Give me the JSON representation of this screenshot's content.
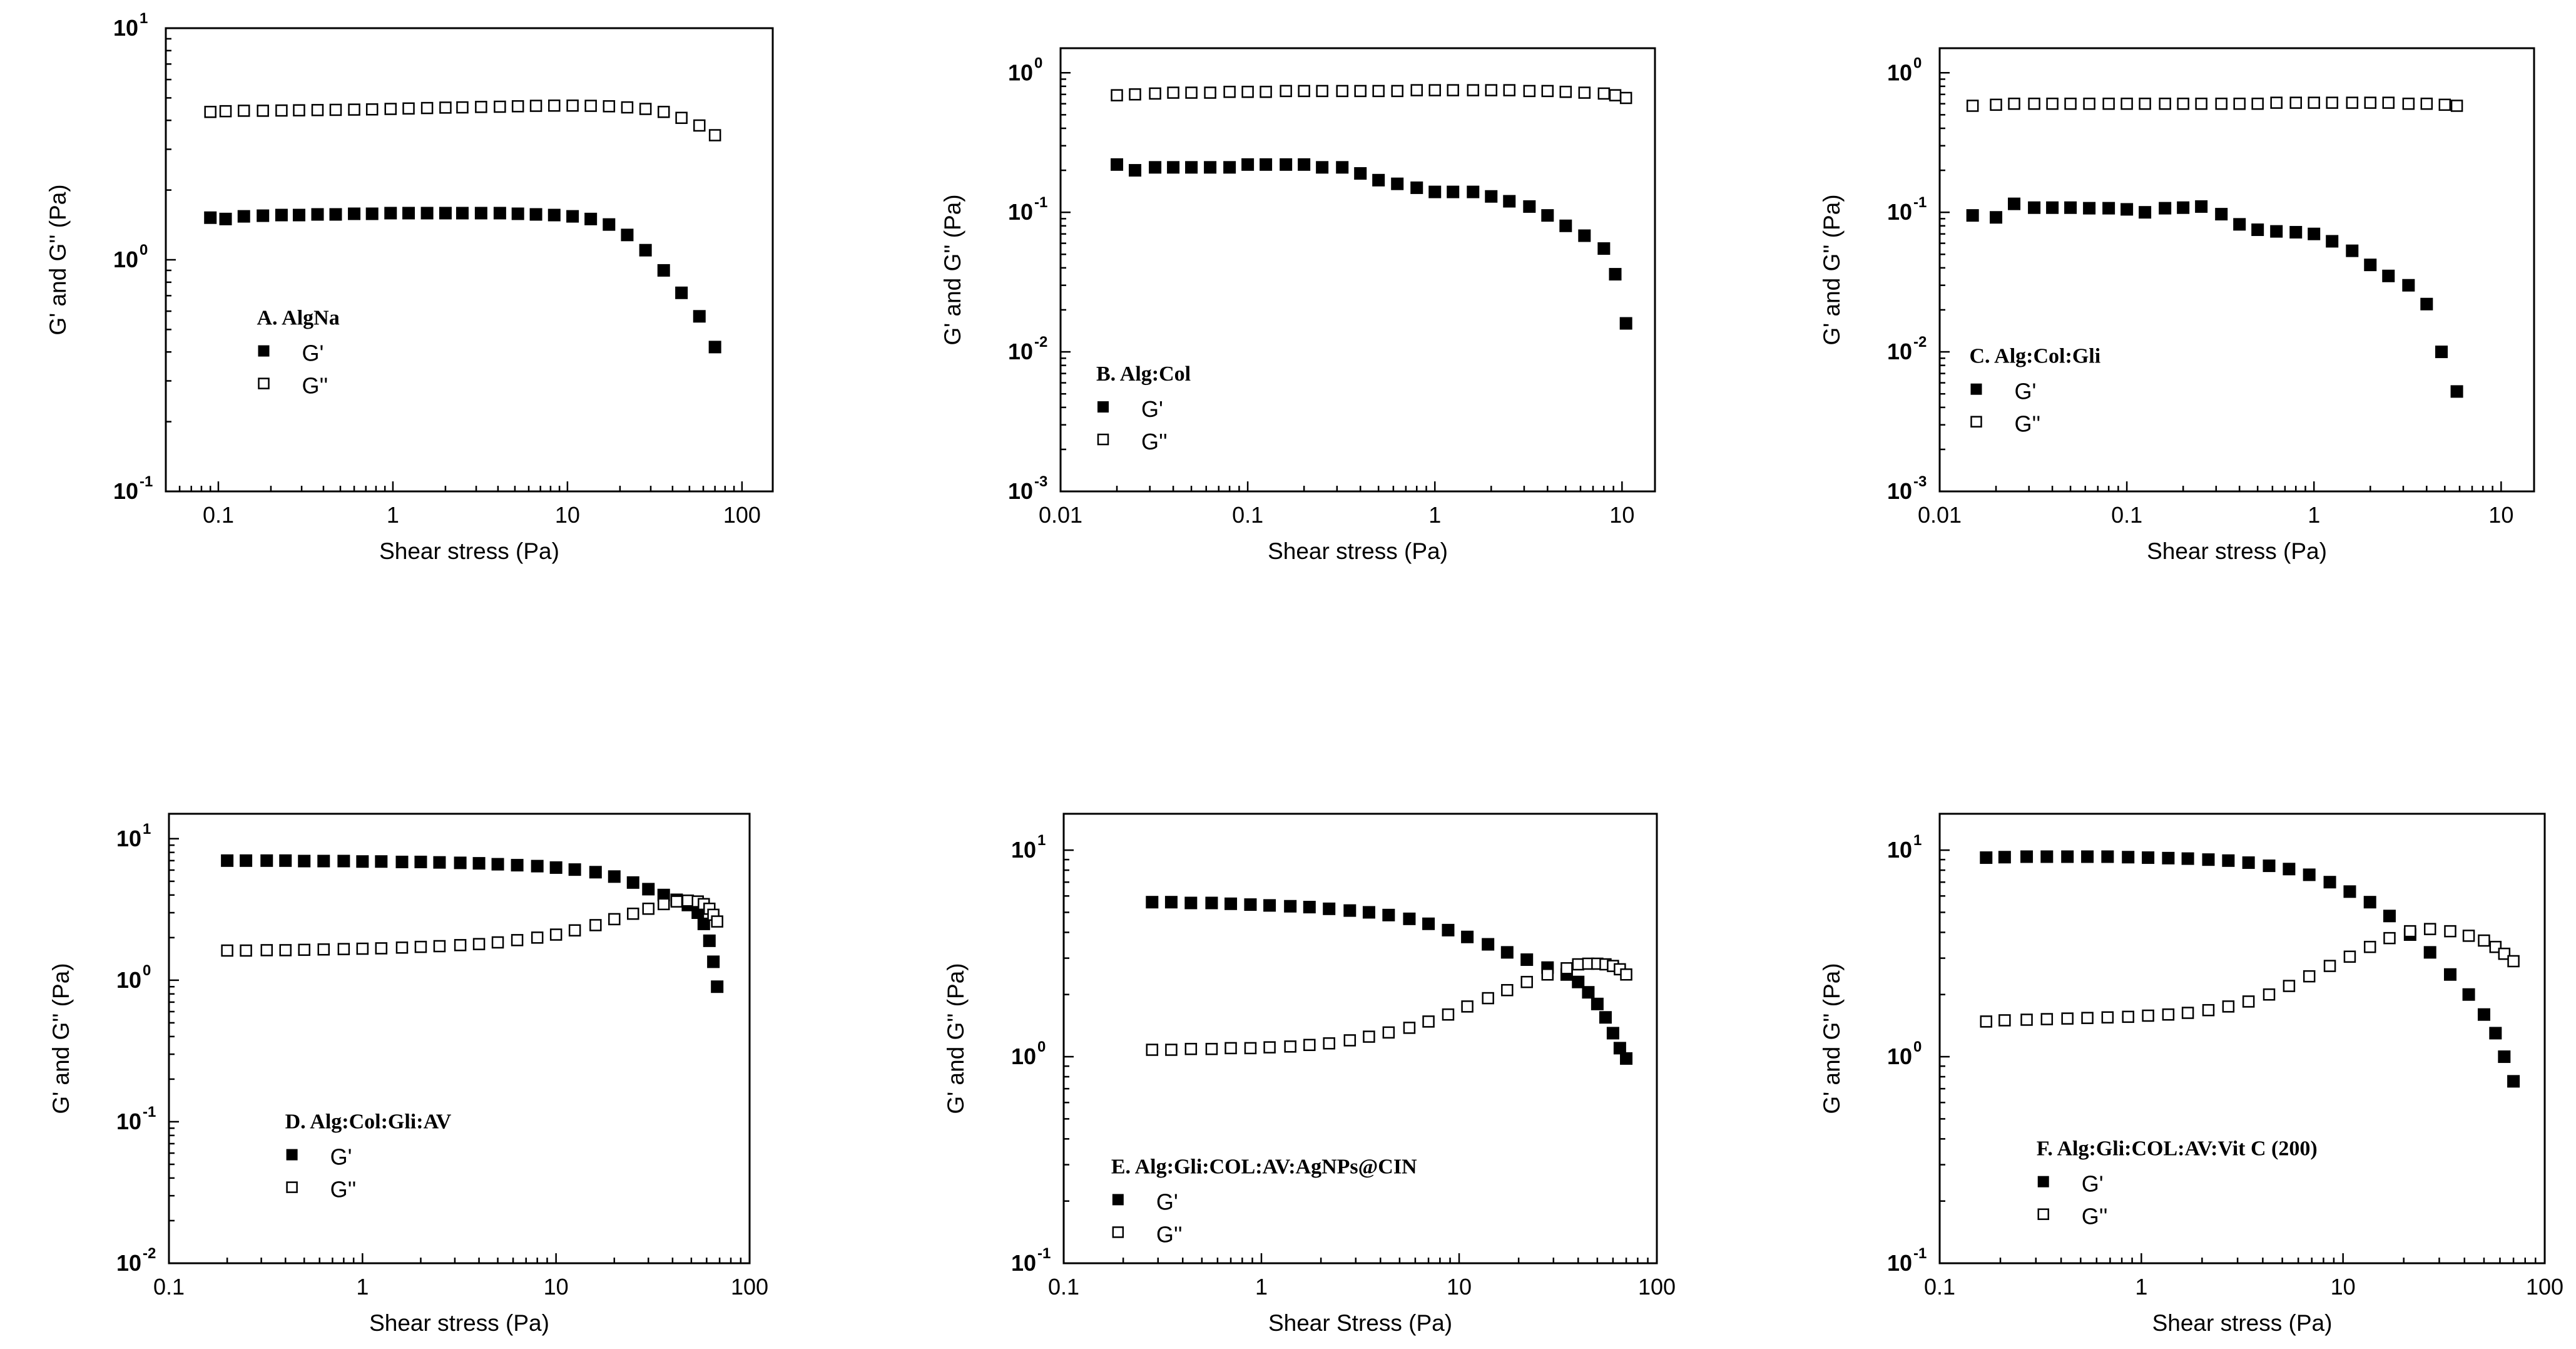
{
  "figure": {
    "background": "#ffffff",
    "ink": "#000000"
  },
  "chart_data": [
    {
      "id": "A",
      "type": "scatter",
      "title": "A. AlgNa",
      "xlabel": "Shear stress (Pa)",
      "ylabel": "G' and G'' (Pa)",
      "xscale": "log",
      "yscale": "log",
      "xlim": [
        0.05,
        150
      ],
      "ylim": [
        0.1,
        10
      ],
      "xticks": [
        {
          "v": 0.1,
          "label": "0.1"
        },
        {
          "v": 1,
          "label": "1"
        },
        {
          "v": 10,
          "label": "10"
        },
        {
          "v": 100,
          "label": "100"
        }
      ],
      "yticks": [
        {
          "v": 0.1,
          "b": "10",
          "e": "-1"
        },
        {
          "v": 1,
          "b": "10",
          "e": "0"
        },
        {
          "v": 10,
          "b": "10",
          "e": "1"
        }
      ],
      "legend_position": "lower-left",
      "series": [
        {
          "name": "G'",
          "marker": "filled-square",
          "x": [
            0.09,
            0.11,
            0.14,
            0.18,
            0.23,
            0.29,
            0.37,
            0.47,
            0.6,
            0.76,
            0.97,
            1.23,
            1.57,
            2,
            2.5,
            3.2,
            4.1,
            5.2,
            6.6,
            8.4,
            10.7,
            13.6,
            17.3,
            22,
            28,
            35.6,
            45,
            57,
            70
          ],
          "y": [
            1.52,
            1.5,
            1.54,
            1.55,
            1.56,
            1.56,
            1.57,
            1.57,
            1.58,
            1.58,
            1.59,
            1.59,
            1.59,
            1.59,
            1.59,
            1.59,
            1.59,
            1.58,
            1.57,
            1.56,
            1.54,
            1.5,
            1.42,
            1.28,
            1.1,
            0.9,
            0.72,
            0.57,
            0.42
          ]
        },
        {
          "name": "G''",
          "marker": "open-square",
          "x": [
            0.09,
            0.11,
            0.14,
            0.18,
            0.23,
            0.29,
            0.37,
            0.47,
            0.6,
            0.76,
            0.97,
            1.23,
            1.57,
            2,
            2.5,
            3.2,
            4.1,
            5.2,
            6.6,
            8.4,
            10.7,
            13.6,
            17.3,
            22,
            28,
            35.6,
            45,
            57,
            70
          ],
          "y": [
            4.35,
            4.38,
            4.4,
            4.4,
            4.41,
            4.42,
            4.43,
            4.44,
            4.45,
            4.46,
            4.48,
            4.5,
            4.52,
            4.54,
            4.55,
            4.57,
            4.58,
            4.6,
            4.62,
            4.63,
            4.63,
            4.62,
            4.6,
            4.55,
            4.48,
            4.35,
            4.1,
            3.8,
            3.45
          ]
        }
      ]
    },
    {
      "id": "B",
      "type": "scatter",
      "title": "B. Alg:Col",
      "xlabel": "Shear stress (Pa)",
      "ylabel": "G' and G'' (Pa)",
      "xscale": "log",
      "yscale": "log",
      "xlim": [
        0.01,
        15
      ],
      "ylim": [
        0.001,
        1.5
      ],
      "xticks": [
        {
          "v": 0.01,
          "label": "0.01"
        },
        {
          "v": 0.1,
          "label": "0.1"
        },
        {
          "v": 1,
          "label": "1"
        },
        {
          "v": 10,
          "label": "10"
        }
      ],
      "yticks": [
        {
          "v": 0.001,
          "b": "10",
          "e": "-3"
        },
        {
          "v": 0.01,
          "b": "10",
          "e": "-2"
        },
        {
          "v": 0.1,
          "b": "10",
          "e": "-1"
        },
        {
          "v": 1,
          "b": "10",
          "e": "0"
        }
      ],
      "legend_position": "lower-left",
      "series": [
        {
          "name": "G'",
          "marker": "filled-square",
          "x": [
            0.02,
            0.025,
            0.032,
            0.04,
            0.05,
            0.063,
            0.08,
            0.1,
            0.125,
            0.16,
            0.2,
            0.25,
            0.32,
            0.4,
            0.5,
            0.63,
            0.8,
            1,
            1.25,
            1.6,
            2,
            2.5,
            3.2,
            4,
            5,
            6.3,
            8,
            9.2,
            10.5
          ],
          "y": [
            0.22,
            0.2,
            0.21,
            0.21,
            0.21,
            0.21,
            0.21,
            0.22,
            0.22,
            0.22,
            0.22,
            0.21,
            0.21,
            0.19,
            0.17,
            0.16,
            0.15,
            0.14,
            0.14,
            0.14,
            0.13,
            0.12,
            0.11,
            0.095,
            0.08,
            0.068,
            0.055,
            0.036,
            0.016
          ]
        },
        {
          "name": "G''",
          "marker": "open-square",
          "x": [
            0.02,
            0.025,
            0.032,
            0.04,
            0.05,
            0.063,
            0.08,
            0.1,
            0.125,
            0.16,
            0.2,
            0.25,
            0.32,
            0.4,
            0.5,
            0.63,
            0.8,
            1,
            1.25,
            1.6,
            2,
            2.5,
            3.2,
            4,
            5,
            6.3,
            8,
            9.2,
            10.5
          ],
          "y": [
            0.69,
            0.7,
            0.71,
            0.72,
            0.72,
            0.72,
            0.73,
            0.73,
            0.73,
            0.74,
            0.74,
            0.74,
            0.74,
            0.74,
            0.74,
            0.74,
            0.75,
            0.75,
            0.75,
            0.75,
            0.75,
            0.75,
            0.74,
            0.74,
            0.73,
            0.72,
            0.71,
            0.69,
            0.66
          ]
        }
      ]
    },
    {
      "id": "C",
      "type": "scatter",
      "title": "C. Alg:Col:Gli",
      "xlabel": "Shear stress (Pa)",
      "ylabel": "G' and G'' (Pa)",
      "xscale": "log",
      "yscale": "log",
      "xlim": [
        0.01,
        15
      ],
      "ylim": [
        0.001,
        1.5
      ],
      "xticks": [
        {
          "v": 0.01,
          "label": "0.01"
        },
        {
          "v": 0.1,
          "label": "0.1"
        },
        {
          "v": 1,
          "label": "1"
        },
        {
          "v": 10,
          "label": "10"
        }
      ],
      "yticks": [
        {
          "v": 0.001,
          "b": "10",
          "e": "-3"
        },
        {
          "v": 0.01,
          "b": "10",
          "e": "-2"
        },
        {
          "v": 0.1,
          "b": "10",
          "e": "-1"
        },
        {
          "v": 1,
          "b": "10",
          "e": "0"
        }
      ],
      "legend_position": "lower-left",
      "series": [
        {
          "name": "G'",
          "marker": "filled-square",
          "x": [
            0.015,
            0.02,
            0.025,
            0.032,
            0.04,
            0.05,
            0.063,
            0.08,
            0.1,
            0.125,
            0.16,
            0.2,
            0.25,
            0.32,
            0.4,
            0.5,
            0.63,
            0.8,
            1,
            1.25,
            1.6,
            2,
            2.5,
            3.2,
            4,
            4.8,
            5.8
          ],
          "y": [
            0.095,
            0.092,
            0.115,
            0.108,
            0.108,
            0.108,
            0.107,
            0.107,
            0.105,
            0.1,
            0.107,
            0.108,
            0.11,
            0.097,
            0.082,
            0.075,
            0.073,
            0.072,
            0.07,
            0.062,
            0.053,
            0.042,
            0.035,
            0.03,
            0.022,
            0.01,
            0.0052
          ]
        },
        {
          "name": "G''",
          "marker": "open-square",
          "x": [
            0.015,
            0.02,
            0.025,
            0.032,
            0.04,
            0.05,
            0.063,
            0.08,
            0.1,
            0.125,
            0.16,
            0.2,
            0.25,
            0.32,
            0.4,
            0.5,
            0.63,
            0.8,
            1,
            1.25,
            1.6,
            2,
            2.5,
            3.2,
            4,
            5,
            5.8
          ],
          "y": [
            0.58,
            0.59,
            0.6,
            0.6,
            0.6,
            0.6,
            0.6,
            0.6,
            0.6,
            0.6,
            0.6,
            0.6,
            0.6,
            0.6,
            0.6,
            0.6,
            0.61,
            0.61,
            0.61,
            0.61,
            0.61,
            0.61,
            0.61,
            0.6,
            0.6,
            0.59,
            0.58
          ]
        }
      ]
    },
    {
      "id": "D",
      "type": "scatter",
      "title": "D. Alg:Col:Gli:AV",
      "xlabel": "Shear stress (Pa)",
      "ylabel": "G' and G'' (Pa)",
      "xscale": "log",
      "yscale": "log",
      "xlim": [
        0.1,
        100
      ],
      "ylim": [
        0.01,
        15
      ],
      "xticks": [
        {
          "v": 0.1,
          "label": "0.1"
        },
        {
          "v": 1,
          "label": "1"
        },
        {
          "v": 10,
          "label": "10"
        },
        {
          "v": 100,
          "label": "100"
        }
      ],
      "yticks": [
        {
          "v": 0.01,
          "b": "10",
          "e": "-2"
        },
        {
          "v": 0.1,
          "b": "10",
          "e": "-1"
        },
        {
          "v": 1,
          "b": "10",
          "e": "0"
        },
        {
          "v": 10,
          "b": "10",
          "e": "1"
        }
      ],
      "legend_position": "lower-left",
      "series": [
        {
          "name": "G'",
          "marker": "filled-square",
          "x": [
            0.2,
            0.25,
            0.32,
            0.4,
            0.5,
            0.63,
            0.8,
            1,
            1.25,
            1.6,
            2,
            2.5,
            3.2,
            4,
            5,
            6.3,
            8,
            10,
            12.5,
            16,
            20,
            25,
            30,
            36,
            42,
            48,
            54,
            58,
            62,
            65,
            68
          ],
          "y": [
            7,
            7,
            7,
            7,
            6.95,
            6.95,
            6.95,
            6.9,
            6.9,
            6.85,
            6.85,
            6.8,
            6.75,
            6.7,
            6.6,
            6.5,
            6.4,
            6.25,
            6.05,
            5.8,
            5.4,
            4.9,
            4.4,
            4,
            3.7,
            3.4,
            3,
            2.5,
            1.9,
            1.35,
            0.9
          ]
        },
        {
          "name": "G''",
          "marker": "open-square",
          "x": [
            0.2,
            0.25,
            0.32,
            0.4,
            0.5,
            0.63,
            0.8,
            1,
            1.25,
            1.6,
            2,
            2.5,
            3.2,
            4,
            5,
            6.3,
            8,
            10,
            12.5,
            16,
            20,
            25,
            30,
            36,
            42,
            48,
            54,
            58,
            62,
            65,
            68
          ],
          "y": [
            1.62,
            1.62,
            1.63,
            1.63,
            1.64,
            1.65,
            1.66,
            1.67,
            1.68,
            1.7,
            1.72,
            1.74,
            1.77,
            1.8,
            1.85,
            1.92,
            2,
            2.1,
            2.25,
            2.45,
            2.7,
            2.95,
            3.2,
            3.45,
            3.6,
            3.65,
            3.6,
            3.45,
            3.2,
            2.9,
            2.6
          ]
        }
      ]
    },
    {
      "id": "E",
      "type": "scatter",
      "title": "E. Alg:Gli:COL:AV:AgNPs@CIN",
      "xlabel": "Shear Stress (Pa)",
      "ylabel": "G' and G'' (Pa)",
      "xscale": "log",
      "yscale": "log",
      "xlim": [
        0.1,
        100
      ],
      "ylim": [
        0.1,
        15
      ],
      "xticks": [
        {
          "v": 0.1,
          "label": "0.1"
        },
        {
          "v": 1,
          "label": "1"
        },
        {
          "v": 10,
          "label": "10"
        },
        {
          "v": 100,
          "label": "100"
        }
      ],
      "yticks": [
        {
          "v": 0.1,
          "b": "10",
          "e": "-1"
        },
        {
          "v": 1,
          "b": "10",
          "e": "0"
        },
        {
          "v": 10,
          "b": "10",
          "e": "1"
        }
      ],
      "legend_position": "lower-left",
      "series": [
        {
          "name": "G'",
          "marker": "filled-square",
          "x": [
            0.28,
            0.35,
            0.44,
            0.56,
            0.7,
            0.88,
            1.1,
            1.4,
            1.75,
            2.2,
            2.8,
            3.5,
            4.4,
            5.6,
            7,
            8.8,
            11,
            14,
            17.5,
            22,
            28,
            35,
            40,
            45,
            50,
            55,
            60,
            65,
            70
          ],
          "y": [
            5.6,
            5.6,
            5.55,
            5.55,
            5.5,
            5.45,
            5.4,
            5.35,
            5.3,
            5.2,
            5.1,
            5,
            4.85,
            4.65,
            4.4,
            4.1,
            3.8,
            3.5,
            3.2,
            2.95,
            2.7,
            2.5,
            2.3,
            2.05,
            1.8,
            1.55,
            1.3,
            1.1,
            0.98
          ]
        },
        {
          "name": "G''",
          "marker": "open-square",
          "x": [
            0.28,
            0.35,
            0.44,
            0.56,
            0.7,
            0.88,
            1.1,
            1.4,
            1.75,
            2.2,
            2.8,
            3.5,
            4.4,
            5.6,
            7,
            8.8,
            11,
            14,
            17.5,
            22,
            28,
            35,
            40,
            45,
            50,
            55,
            60,
            65,
            70
          ],
          "y": [
            1.08,
            1.08,
            1.09,
            1.09,
            1.1,
            1.1,
            1.11,
            1.12,
            1.14,
            1.16,
            1.2,
            1.25,
            1.31,
            1.38,
            1.48,
            1.6,
            1.75,
            1.92,
            2.1,
            2.3,
            2.5,
            2.68,
            2.8,
            2.82,
            2.82,
            2.8,
            2.75,
            2.65,
            2.5
          ]
        }
      ]
    },
    {
      "id": "F",
      "type": "scatter",
      "title": "F. Alg:Gli:COL:AV:Vit C (200)",
      "xlabel": "Shear stress (Pa)",
      "ylabel": "G' and G'' (Pa)",
      "xscale": "log",
      "yscale": "log",
      "xlim": [
        0.1,
        100
      ],
      "ylim": [
        0.1,
        15
      ],
      "xticks": [
        {
          "v": 0.1,
          "label": "0.1"
        },
        {
          "v": 1,
          "label": "1"
        },
        {
          "v": 10,
          "label": "10"
        },
        {
          "v": 100,
          "label": "100"
        }
      ],
      "yticks": [
        {
          "v": 0.1,
          "b": "10",
          "e": "-1"
        },
        {
          "v": 1,
          "b": "10",
          "e": "0"
        },
        {
          "v": 10,
          "b": "10",
          "e": "1"
        }
      ],
      "legend_position": "lower-left",
      "series": [
        {
          "name": "G'",
          "marker": "filled-square",
          "x": [
            0.17,
            0.21,
            0.27,
            0.34,
            0.43,
            0.54,
            0.68,
            0.86,
            1.08,
            1.36,
            1.7,
            2.15,
            2.7,
            3.4,
            4.3,
            5.4,
            6.8,
            8.6,
            10.8,
            13.6,
            17,
            21.5,
            27,
            34,
            42,
            50,
            57,
            63,
            70
          ],
          "y": [
            9.2,
            9.25,
            9.3,
            9.3,
            9.3,
            9.3,
            9.3,
            9.25,
            9.2,
            9.15,
            9.1,
            9,
            8.9,
            8.7,
            8.4,
            8.1,
            7.6,
            7,
            6.3,
            5.6,
            4.8,
            3.9,
            3.2,
            2.5,
            2,
            1.6,
            1.3,
            1,
            0.76
          ]
        },
        {
          "name": "G''",
          "marker": "open-square",
          "x": [
            0.17,
            0.21,
            0.27,
            0.34,
            0.43,
            0.54,
            0.68,
            0.86,
            1.08,
            1.36,
            1.7,
            2.15,
            2.7,
            3.4,
            4.3,
            5.4,
            6.8,
            8.6,
            10.8,
            13.6,
            17,
            21.5,
            27,
            34,
            42,
            50,
            57,
            63,
            70
          ],
          "y": [
            1.48,
            1.5,
            1.51,
            1.52,
            1.53,
            1.54,
            1.55,
            1.56,
            1.58,
            1.6,
            1.63,
            1.68,
            1.75,
            1.85,
            2,
            2.2,
            2.45,
            2.75,
            3.05,
            3.4,
            3.75,
            4.05,
            4.15,
            4.05,
            3.85,
            3.65,
            3.4,
            3.15,
            2.9
          ]
        }
      ]
    }
  ]
}
